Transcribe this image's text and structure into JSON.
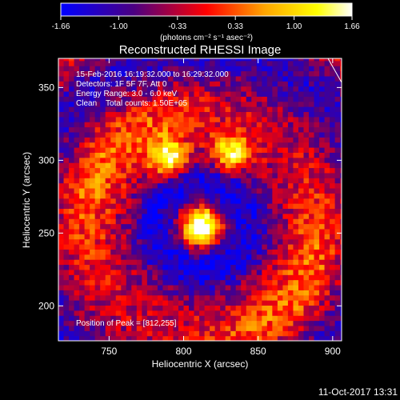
{
  "chart_data": {
    "type": "heatmap",
    "title": "Reconstructed RHESSI Image",
    "xlabel": "Heliocentric X (arcsec)",
    "ylabel": "Heliocentric Y (arcsec)",
    "xlim": [
      716,
      906
    ],
    "ylim": [
      176,
      370
    ],
    "x_ticks": [
      750,
      800,
      850,
      900
    ],
    "y_ticks": [
      200,
      250,
      300,
      350
    ],
    "colorbar": {
      "min": -1.66,
      "max": 1.66,
      "ticks": [
        "-1.66",
        "-1.00",
        "-0.33",
        "0.33",
        "1.00",
        "1.66"
      ],
      "label": "(photons cm⁻² s⁻¹ asec⁻²)",
      "colormap": [
        "#0000ff",
        "#4b0082",
        "#ff0000",
        "#ffa500",
        "#ffff00",
        "#ffffff"
      ]
    },
    "annotations": [
      "15-Feb-2016 16:19:32.000 to 16:29:32.000",
      "Detectors: 1F 5F 7F, Att 0",
      "Energy Range: 3.0 - 6.0 keV",
      "Clean    Total counts: 1.50E+05"
    ],
    "peak_label": "Position of Peak = [812,255]",
    "peak": {
      "x": 812,
      "y": 255,
      "value": 1.66
    },
    "sources": [
      {
        "x": 812,
        "y": 255,
        "peak": 1.66
      },
      {
        "x": 790,
        "y": 302,
        "peak": 1.3
      },
      {
        "x": 832,
        "y": 305,
        "peak": 1.2
      }
    ],
    "footer_date": "11-Oct-2017 13:31"
  }
}
